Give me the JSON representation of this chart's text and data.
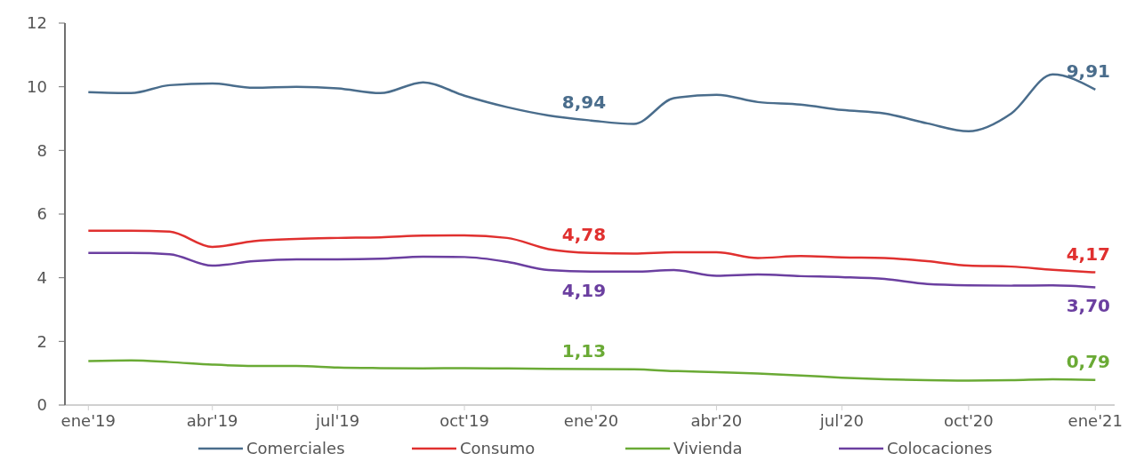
{
  "chart_data": {
    "type": "line",
    "x": [
      "2019-01",
      "2019-02",
      "2019-03",
      "2019-04",
      "2019-05",
      "2019-06",
      "2019-07",
      "2019-08",
      "2019-09",
      "2019-10",
      "2019-11",
      "2019-12",
      "2020-01",
      "2020-02",
      "2020-03",
      "2020-04",
      "2020-05",
      "2020-06",
      "2020-07",
      "2020-08",
      "2020-09",
      "2020-10",
      "2020-11",
      "2020-12",
      "2021-01"
    ],
    "xlim": [
      "2018-12-15",
      "2021-01-15"
    ],
    "xticks": [
      {
        "value": "2019-01",
        "label": "ene'19"
      },
      {
        "value": "2019-04",
        "label": "abr'19"
      },
      {
        "value": "2019-07",
        "label": "jul'19"
      },
      {
        "value": "2019-10",
        "label": "oct'19"
      },
      {
        "value": "2020-01",
        "label": "ene'20"
      },
      {
        "value": "2020-04",
        "label": "abr'20"
      },
      {
        "value": "2020-07",
        "label": "jul'20"
      },
      {
        "value": "2020-10",
        "label": "oct'20"
      },
      {
        "value": "2021-01",
        "label": "ene'21"
      }
    ],
    "ylim": [
      0,
      12
    ],
    "yticks": [
      0,
      2,
      4,
      6,
      8,
      10,
      12
    ],
    "grid": false,
    "legend": "bottom",
    "marker": "none",
    "line_style": "solid",
    "series": [
      {
        "name": "Comerciales",
        "color": "#4a6d8c",
        "values": [
          9.83,
          9.8,
          10.05,
          10.1,
          9.97,
          10.0,
          9.95,
          9.8,
          10.14,
          9.72,
          9.36,
          9.1,
          8.94,
          8.83,
          9.64,
          9.75,
          9.52,
          9.44,
          9.27,
          9.16,
          8.85,
          8.6,
          9.16,
          10.39,
          9.91
        ],
        "value_labels": [
          null,
          null,
          null,
          null,
          null,
          null,
          null,
          null,
          null,
          null,
          null,
          null,
          "8,94",
          null,
          null,
          null,
          null,
          null,
          null,
          null,
          null,
          null,
          null,
          null,
          "9,91"
        ]
      },
      {
        "name": "Consumo",
        "color": "#e0302f",
        "values": [
          5.48,
          5.48,
          5.45,
          4.97,
          5.15,
          5.22,
          5.25,
          5.27,
          5.32,
          5.33,
          5.25,
          4.9,
          4.78,
          4.76,
          4.8,
          4.8,
          4.62,
          4.68,
          4.64,
          4.62,
          4.52,
          4.38,
          4.35,
          4.25,
          4.17
        ],
        "value_labels": [
          null,
          null,
          null,
          null,
          null,
          null,
          null,
          null,
          null,
          null,
          null,
          null,
          "4,78",
          null,
          null,
          null,
          null,
          null,
          null,
          null,
          null,
          null,
          null,
          null,
          "4,17"
        ]
      },
      {
        "name": "Vivienda",
        "color": "#6aaa35",
        "values": [
          1.38,
          1.4,
          1.35,
          1.27,
          1.23,
          1.23,
          1.18,
          1.16,
          1.15,
          1.16,
          1.15,
          1.14,
          1.13,
          1.12,
          1.07,
          1.03,
          0.99,
          0.93,
          0.86,
          0.81,
          0.78,
          0.77,
          0.78,
          0.81,
          0.79
        ],
        "value_labels": [
          null,
          null,
          null,
          null,
          null,
          null,
          null,
          null,
          null,
          null,
          null,
          null,
          "1,13",
          null,
          null,
          null,
          null,
          null,
          null,
          null,
          null,
          null,
          null,
          null,
          "0,79"
        ]
      },
      {
        "name": "Colocaciones",
        "color": "#6b3fa0",
        "values": [
          4.78,
          4.78,
          4.74,
          4.38,
          4.52,
          4.58,
          4.58,
          4.6,
          4.66,
          4.65,
          4.5,
          4.24,
          4.19,
          4.19,
          4.24,
          4.06,
          4.1,
          4.05,
          4.02,
          3.96,
          3.8,
          3.76,
          3.75,
          3.76,
          3.7
        ],
        "value_labels": [
          null,
          null,
          null,
          null,
          null,
          null,
          null,
          null,
          null,
          null,
          null,
          null,
          "4,19",
          null,
          null,
          null,
          null,
          null,
          null,
          null,
          null,
          null,
          null,
          null,
          "3,70"
        ]
      }
    ]
  }
}
